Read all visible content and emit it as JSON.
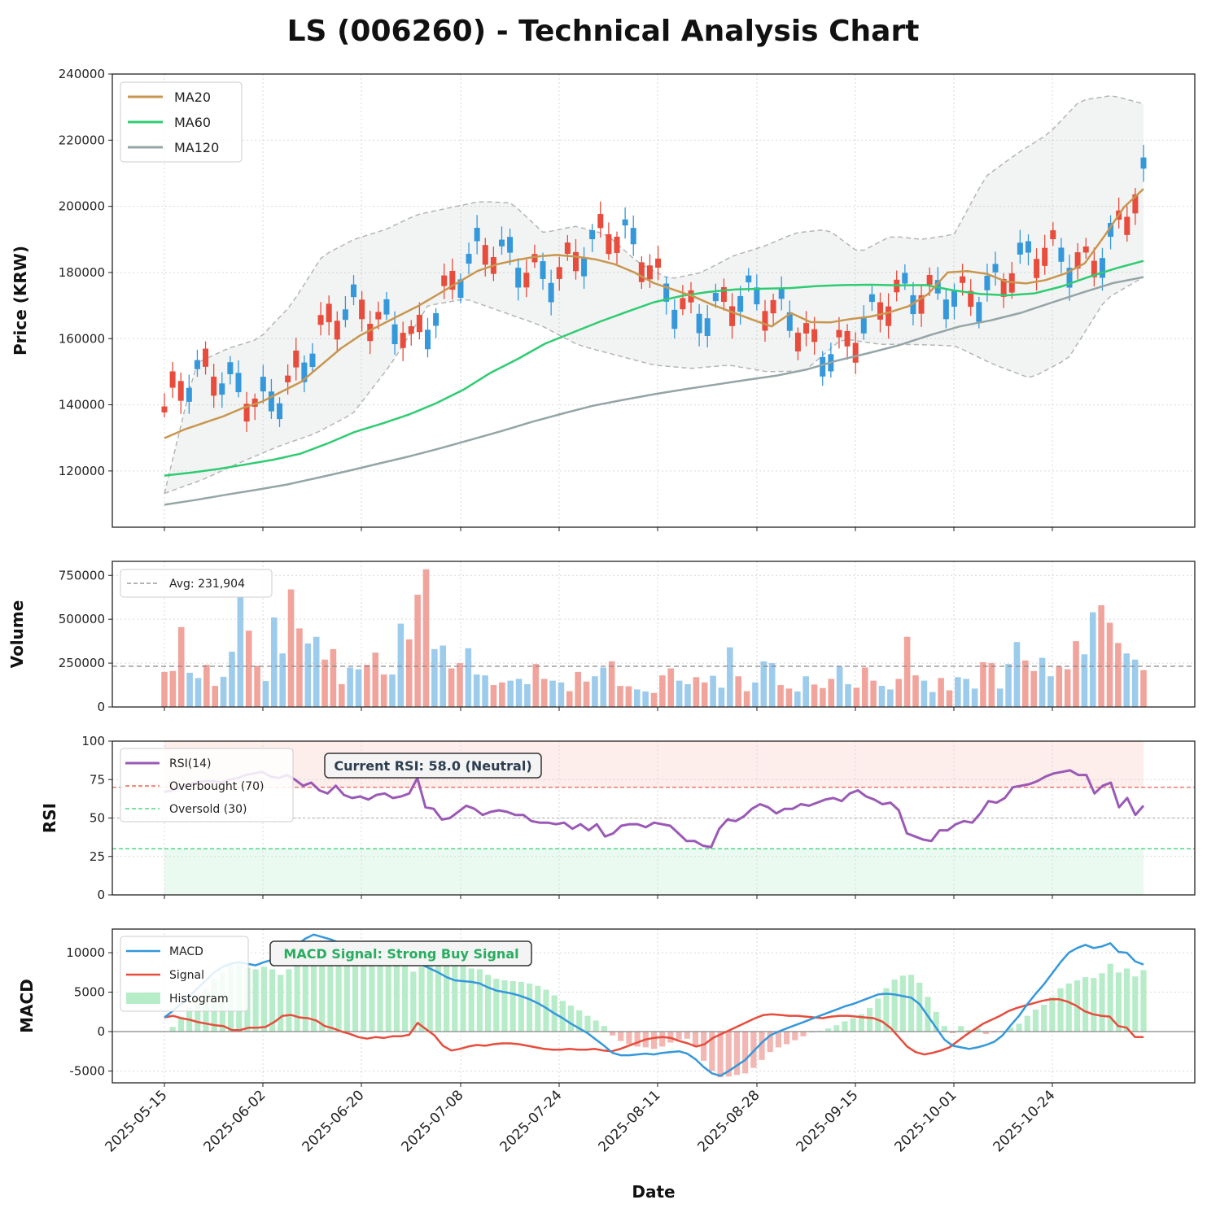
{
  "title": "LS (006260) - Technical Analysis Chart",
  "chart_data": [
    {
      "panel": "price",
      "type": "candlestick",
      "ylabel": "Price (KRW)",
      "ylim": [
        103000,
        240000
      ],
      "yticks": [
        120000,
        140000,
        160000,
        180000,
        200000,
        220000,
        240000
      ],
      "xlabel": "Date",
      "xticks": [
        "2025-05-15",
        "2025-06-02",
        "2025-06-20",
        "2025-07-08",
        "2025-07-24",
        "2025-08-11",
        "2025-08-28",
        "2025-09-15",
        "2025-10-01",
        "2025-10-24"
      ],
      "legend": [
        "MA20",
        "MA60",
        "MA120"
      ],
      "legend_position": "top-left",
      "approx_ohlc": "Candles are derived from the MA20 trend; MA20, MA60, MA120 and Bollinger band values below are read from the chart.",
      "ma20": [
        129900,
        132500,
        134500,
        136500,
        139000,
        141000,
        144000,
        147000,
        152000,
        157000,
        161000,
        164000,
        167000,
        170000,
        173500,
        177000,
        180500,
        182500,
        183800,
        184800,
        185300,
        184800,
        184000,
        182500,
        180000,
        176800,
        174800,
        172800,
        170200,
        168000,
        165800,
        163700,
        167700,
        165000,
        164900,
        165900,
        166600,
        167900,
        169800,
        173500,
        180000,
        180400,
        179600,
        177200,
        176700,
        177700,
        179700,
        182800,
        191000,
        199700,
        205300
      ],
      "ma60": [
        118600,
        119500,
        120600,
        122000,
        123400,
        125200,
        128300,
        131800,
        134300,
        137100,
        140500,
        144600,
        149700,
        153900,
        158500,
        161800,
        165100,
        168100,
        171000,
        172900,
        174100,
        174900,
        175100,
        175300,
        175900,
        176200,
        176300,
        176100,
        176200,
        174600,
        173500,
        173100,
        173700,
        175800,
        178700,
        181300,
        183500
      ],
      "ma120": [
        109800,
        111200,
        112800,
        114300,
        115900,
        117900,
        120000,
        122200,
        124400,
        126800,
        129400,
        132000,
        134800,
        137300,
        139700,
        141500,
        143200,
        144700,
        146100,
        147500,
        148800,
        150700,
        153400,
        155600,
        158000,
        161000,
        163700,
        165500,
        167800,
        170900,
        173900,
        176800,
        178600
      ],
      "bollinger_upper": [
        113200,
        152500,
        157000,
        160000,
        170000,
        185000,
        190000,
        193000,
        197500,
        199500,
        201500,
        201000,
        192000,
        194000,
        191500,
        183000,
        178000,
        180000,
        185000,
        188000,
        192000,
        193000,
        186000,
        191000,
        190000,
        191500,
        209000,
        216000,
        222000,
        232000,
        233500,
        231000
      ],
      "bollinger_lower": [
        113200,
        117300,
        122500,
        127300,
        131300,
        137300,
        152000,
        170000,
        172000,
        168000,
        164000,
        158000,
        155000,
        152000,
        151000,
        152000,
        150000,
        150200,
        160000,
        158300,
        158200,
        157800,
        152300,
        148000,
        154000,
        172000,
        178600
      ]
    },
    {
      "panel": "volume",
      "type": "bar",
      "ylabel": "Volume",
      "ylim": [
        0,
        830000
      ],
      "yticks": [
        0,
        250000,
        500000,
        750000
      ],
      "average_label": "Avg: 231,904",
      "average": 231904,
      "values": [
        200000,
        205000,
        455000,
        195000,
        165000,
        240000,
        120000,
        172000,
        315000,
        630000,
        435000,
        235000,
        148000,
        510000,
        305000,
        670000,
        448000,
        362000,
        400000,
        270000,
        330000,
        130000,
        225000,
        215000,
        240000,
        310000,
        185000,
        185000,
        475000,
        385000,
        640000,
        785000,
        330000,
        350000,
        220000,
        250000,
        335000,
        185000,
        180000,
        125000,
        140000,
        150000,
        160000,
        130000,
        245000,
        160000,
        150000,
        140000,
        90000,
        200000,
        145000,
        175000,
        225000,
        260000,
        120000,
        118000,
        100000,
        88000,
        80000,
        180000,
        220000,
        150000,
        130000,
        170000,
        140000,
        178000,
        110000,
        340000,
        175000,
        90000,
        140000,
        260000,
        250000,
        125000,
        105000,
        88000,
        175000,
        128000,
        108000,
        160000,
        230000,
        130000,
        110000,
        225000,
        150000,
        120000,
        100000,
        160000,
        400000,
        180000,
        150000,
        85000,
        165000,
        95000,
        170000,
        160000,
        105000,
        255000,
        250000,
        105000,
        245000,
        370000,
        265000,
        205000,
        280000,
        175000,
        230000,
        215000,
        375000,
        300000,
        540000,
        580000,
        480000,
        365000,
        305000,
        270000,
        210000
      ],
      "colors_up_down": "red = up day, blue = down day"
    },
    {
      "panel": "rsi",
      "type": "line",
      "ylabel": "RSI",
      "ylim": [
        0,
        100
      ],
      "yticks": [
        0,
        25,
        50,
        75,
        100
      ],
      "legend": [
        "RSI(14)",
        "Overbought (70)",
        "Oversold (30)"
      ],
      "overbought": 70,
      "oversold": 30,
      "annotation": "Current RSI: 58.0 (Neutral)",
      "values": [
        67,
        68,
        70,
        72,
        73,
        74,
        74,
        73,
        75,
        76,
        78,
        79,
        80,
        77,
        76,
        78,
        75,
        71,
        73,
        68,
        66,
        71,
        65,
        63,
        64,
        62,
        65,
        66,
        63,
        64,
        66,
        76,
        57,
        56,
        49,
        50,
        54,
        58,
        56,
        52,
        54,
        55,
        54,
        52,
        52,
        48,
        47,
        47,
        46,
        47,
        43,
        46,
        42,
        46,
        38,
        40,
        45,
        46,
        46,
        44,
        47,
        46,
        45,
        40,
        35,
        35,
        32,
        31,
        43,
        49,
        48,
        51,
        56,
        59,
        57,
        53,
        56,
        56,
        59,
        58,
        60,
        62,
        63,
        61,
        66,
        68,
        64,
        62,
        59,
        60,
        55,
        40,
        38,
        36,
        35,
        42,
        42,
        46,
        48,
        47,
        53,
        61,
        60,
        63,
        70,
        71,
        72,
        74,
        77,
        79,
        80,
        81,
        78,
        78,
        66,
        71,
        73,
        57,
        63,
        52,
        58
      ]
    },
    {
      "panel": "macd",
      "type": "line",
      "ylabel": "MACD",
      "ylim": [
        -6500,
        13000
      ],
      "yticks": [
        -5000,
        0,
        5000,
        10000
      ],
      "legend": [
        "MACD",
        "Signal",
        "Histogram"
      ],
      "annotation": "MACD Signal: Strong Buy Signal",
      "macd": [
        1800,
        2600,
        3500,
        4500,
        5500,
        6500,
        7500,
        8200,
        8600,
        8800,
        8600,
        8400,
        8800,
        9100,
        9200,
        10000,
        11000,
        11800,
        12300,
        12000,
        11700,
        11300,
        10700,
        10200,
        9700,
        9400,
        9200,
        9100,
        9000,
        8900,
        8700,
        8500,
        8000,
        7500,
        6900,
        6500,
        6400,
        6300,
        6100,
        5600,
        5200,
        5000,
        4800,
        4500,
        4100,
        3600,
        3000,
        2300,
        1700,
        1000,
        400,
        -200,
        -1000,
        -1800,
        -2700,
        -3000,
        -3000,
        -2900,
        -2800,
        -2900,
        -2700,
        -2600,
        -2500,
        -2800,
        -3500,
        -4500,
        -5300,
        -5600,
        -5000,
        -4300,
        -3600,
        -2500,
        -1400,
        -500,
        0,
        400,
        800,
        1200,
        1600,
        2000,
        2400,
        2800,
        3200,
        3500,
        3900,
        4300,
        4700,
        4800,
        4700,
        4500,
        4300,
        3500,
        2000,
        500,
        -1000,
        -1800,
        -2000,
        -2200,
        -2000,
        -1700,
        -1300,
        -500,
        800,
        2000,
        3500,
        4800,
        6000,
        7400,
        8800,
        10000,
        10600,
        11000,
        10600,
        10800,
        11200,
        10100,
        10000,
        8900,
        8500
      ],
      "signal": [
        1800,
        2000,
        1700,
        1500,
        1200,
        1000,
        800,
        700,
        200,
        200,
        500,
        500,
        600,
        1200,
        2000,
        2100,
        1800,
        1700,
        1400,
        700,
        400,
        0,
        -300,
        -700,
        -900,
        -700,
        -800,
        -600,
        -600,
        -400,
        1100,
        300,
        -500,
        -1800,
        -2400,
        -2200,
        -1900,
        -1700,
        -1800,
        -1600,
        -1500,
        -1500,
        -1600,
        -1800,
        -2000,
        -2200,
        -2300,
        -2300,
        -2200,
        -2300,
        -2300,
        -2200,
        -2400,
        -2500,
        -2200,
        -1800,
        -1400,
        -1000,
        -800,
        -700,
        -800,
        -1200,
        -1500,
        -1900,
        -1600,
        -800,
        -300,
        200,
        700,
        1200,
        1700,
        2100,
        2200,
        2100,
        2000,
        2000,
        1900,
        1800,
        1700,
        1900,
        2000,
        2000,
        1900,
        1800,
        1700,
        1300,
        500,
        -700,
        -1900,
        -2600,
        -2900,
        -2700,
        -2400,
        -2000,
        -1200,
        -400,
        300,
        1000,
        1500,
        2000,
        2600,
        3000,
        3300,
        3600,
        3900,
        4100,
        4100,
        3800,
        3300,
        2600,
        2200,
        2000,
        1900,
        700,
        500,
        -700,
        -700
      ],
      "histogram": [
        0,
        600,
        1800,
        3000,
        4300,
        5500,
        6700,
        7500,
        8400,
        8600,
        8100,
        7900,
        8200,
        7900,
        7200,
        7900,
        9200,
        10100,
        10900,
        11300,
        11300,
        11300,
        11000,
        10900,
        10600,
        10100,
        10000,
        9700,
        9600,
        9300,
        7600,
        8200,
        8500,
        9300,
        9300,
        8700,
        8300,
        8000,
        7900,
        7200,
        6700,
        6500,
        6400,
        6300,
        6100,
        5800,
        5300,
        4600,
        3900,
        3300,
        2700,
        2000,
        1400,
        700,
        -500,
        -1200,
        -1600,
        -1900,
        -2000,
        -2200,
        -1900,
        -1400,
        -1000,
        -900,
        -1900,
        -3700,
        -5000,
        -5800,
        -5700,
        -5500,
        -5300,
        -4600,
        -3600,
        -2600,
        -2000,
        -1600,
        -1100,
        -600,
        -100,
        100,
        400,
        800,
        1300,
        1700,
        2200,
        3000,
        4200,
        5500,
        6600,
        7100,
        7200,
        6200,
        4400,
        2500,
        700,
        -200,
        700,
        200,
        400,
        -300,
        -100,
        -100,
        500,
        1000,
        2000,
        2800,
        3400,
        4400,
        5500,
        6100,
        6500,
        6900,
        6800,
        7400,
        8600,
        7500,
        8000,
        7000,
        7800
      ]
    }
  ],
  "colors": {
    "up": "#e74c3c",
    "down": "#3498db",
    "up_light": "#f1a49c",
    "down_light": "#9dcbeb",
    "ma20": "#c9964f",
    "ma60": "#2ecc71",
    "ma120": "#95a5a6",
    "rsi": "#9b59b6",
    "macd": "#3498db",
    "signal": "#e74c3c",
    "hist": "#b7ecc9",
    "hist_neg": "#f2b7b2"
  }
}
